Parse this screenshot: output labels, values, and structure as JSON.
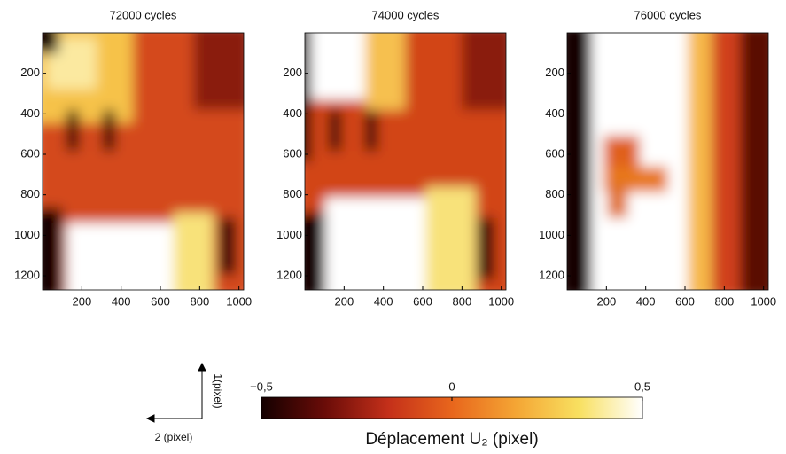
{
  "chart_data": [
    {
      "type": "heatmap",
      "title": "72000 cycles",
      "xlim": [
        0,
        1024
      ],
      "ylim": [
        1270,
        0
      ],
      "xticks": [
        200,
        400,
        600,
        800,
        1000
      ],
      "yticks": [
        200,
        400,
        600,
        800,
        1000,
        1200
      ]
    },
    {
      "type": "heatmap",
      "title": "74000 cycles",
      "xlim": [
        0,
        1024
      ],
      "ylim": [
        1270,
        0
      ],
      "xticks": [
        200,
        400,
        600,
        800,
        1000
      ],
      "yticks": [
        200,
        400,
        600,
        800,
        1000,
        1200
      ]
    },
    {
      "type": "heatmap",
      "title": "76000 cycles",
      "xlim": [
        0,
        1024
      ],
      "ylim": [
        1270,
        0
      ],
      "xticks": [
        200,
        400,
        600,
        800,
        1000
      ],
      "yticks": [
        200,
        400,
        600,
        800,
        1000,
        1200
      ]
    },
    {
      "type": "colorbar",
      "clim": [
        -0.5,
        0.5
      ],
      "ticks": [
        {
          "value": -0.5,
          "label": "−0,5"
        },
        0,
        {
          "value": 0.5,
          "label": "0,5"
        }
      ],
      "label": "Déplacement U₂ (pixel)",
      "colors": [
        "#140000",
        "#6a0c08",
        "#c4301a",
        "#e8661c",
        "#f4a534",
        "#f8e060",
        "#ffffff"
      ]
    }
  ],
  "axes_legend": {
    "vertical": "1(pixel)",
    "horizontal": "2 (pixel)"
  }
}
